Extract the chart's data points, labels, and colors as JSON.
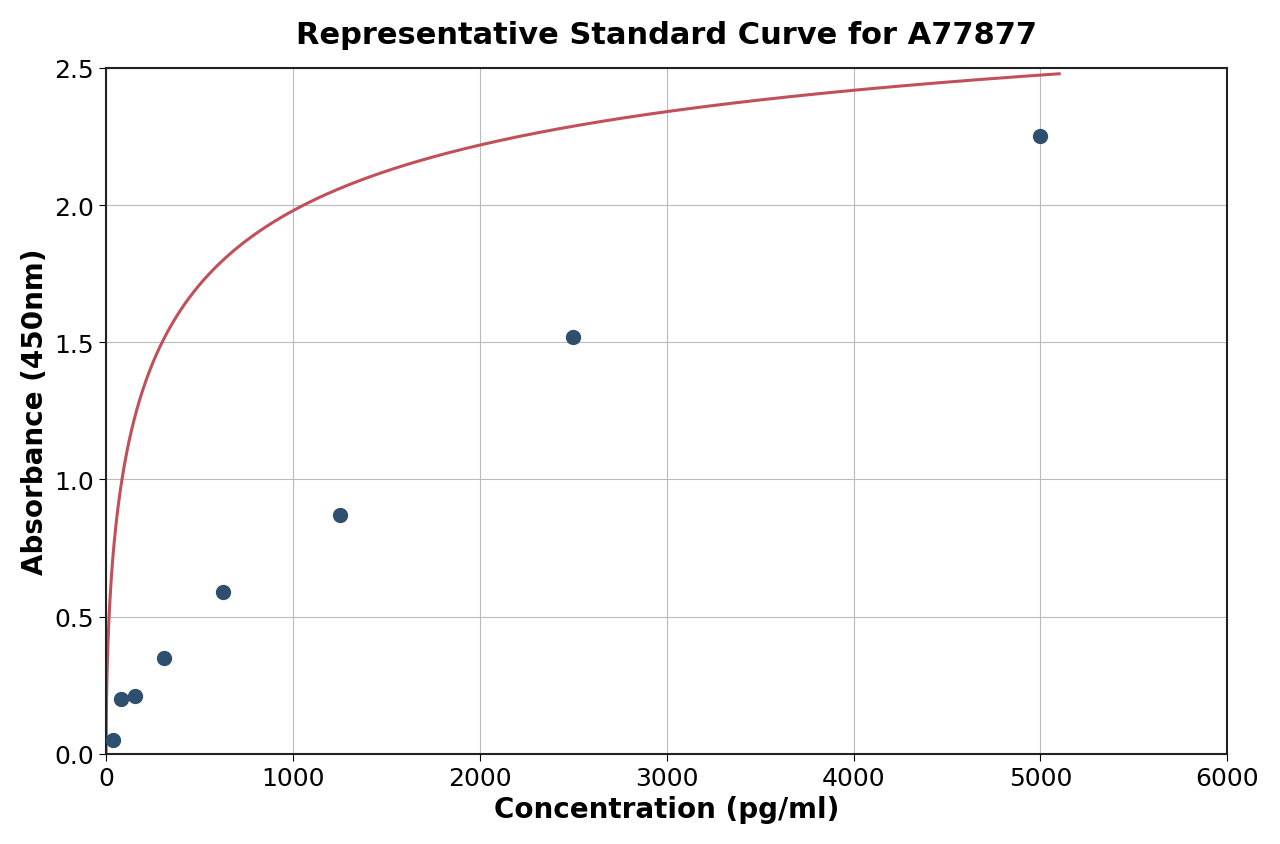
{
  "title": "Representative Standard Curve for A77877",
  "xlabel": "Concentration (pg/ml)",
  "ylabel": "Absorbance (450nm)",
  "data_points_x": [
    39.0625,
    78.125,
    156.25,
    312.5,
    625,
    1250,
    2500,
    5000
  ],
  "data_points_y": [
    0.05,
    0.2,
    0.21,
    0.35,
    0.59,
    0.87,
    1.52,
    2.25
  ],
  "xlim": [
    0,
    6000
  ],
  "ylim": [
    0,
    2.5
  ],
  "xticks": [
    0,
    1000,
    2000,
    3000,
    4000,
    5000,
    6000
  ],
  "yticks": [
    0.0,
    0.5,
    1.0,
    1.5,
    2.0,
    2.5
  ],
  "curve_color": "#c0505a",
  "dot_color": "#2e4f6e",
  "dot_size": 100,
  "background_color": "#ffffff",
  "grid_color": "#bbbbbb",
  "title_fontsize": 22,
  "label_fontsize": 20,
  "tick_fontsize": 18,
  "title_fontweight": "bold",
  "label_fontweight": "bold",
  "curve_end_x": 5100,
  "curve_start_x": 0
}
